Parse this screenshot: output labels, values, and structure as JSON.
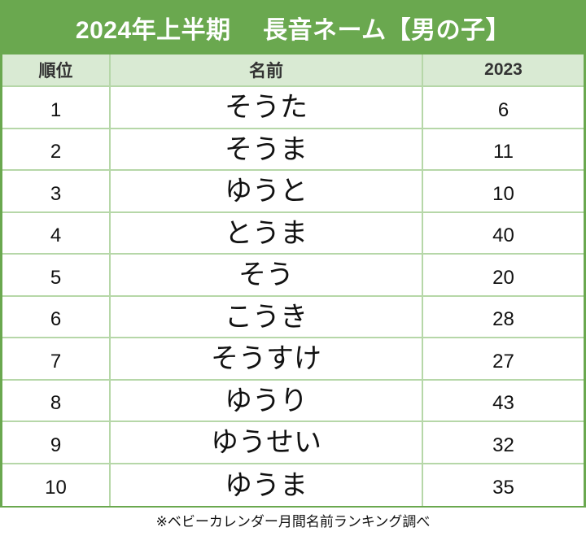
{
  "title": "2024年上半期　 長音ネーム【男の子】",
  "colors": {
    "title_bg": "#6aa84f",
    "header_bg": "#d9ead3",
    "grid_line": "#b6d7a8",
    "outer_border": "#6aa84f"
  },
  "table": {
    "headers": {
      "rank": "順位",
      "name": "名前",
      "prev": "2023"
    },
    "rows": [
      {
        "rank": "1",
        "name": "そうた",
        "prev": "6"
      },
      {
        "rank": "2",
        "name": "そうま",
        "prev": "11"
      },
      {
        "rank": "3",
        "name": "ゆうと",
        "prev": "10"
      },
      {
        "rank": "4",
        "name": "とうま",
        "prev": "40"
      },
      {
        "rank": "5",
        "name": "そう",
        "prev": "20"
      },
      {
        "rank": "6",
        "name": "こうき",
        "prev": "28"
      },
      {
        "rank": "7",
        "name": "そうすけ",
        "prev": "27"
      },
      {
        "rank": "8",
        "name": "ゆうり",
        "prev": "43"
      },
      {
        "rank": "9",
        "name": "ゆうせい",
        "prev": "32"
      },
      {
        "rank": "10",
        "name": "ゆうま",
        "prev": "35"
      }
    ]
  },
  "footer": "※ベビーカレンダー月間名前ランキング調べ"
}
